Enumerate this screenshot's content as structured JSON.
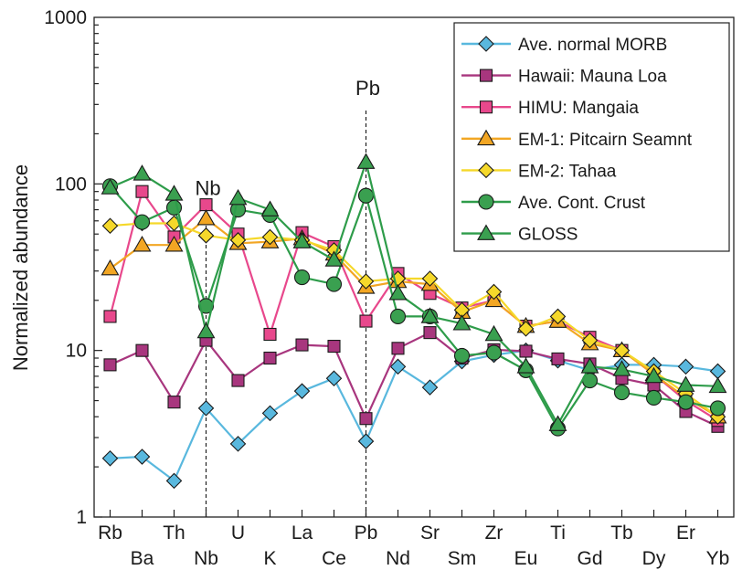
{
  "chart_data": {
    "type": "line",
    "title": "",
    "xlabel": "",
    "ylabel": "Normalized abundance",
    "yscale": "log",
    "ylim": [
      1,
      1000
    ],
    "yticks": [
      {
        "value": 1,
        "label": "1"
      },
      {
        "value": 10,
        "label": "10"
      },
      {
        "value": 100,
        "label": "100"
      },
      {
        "value": 1000,
        "label": "1000"
      }
    ],
    "categories": [
      "Rb",
      "Ba",
      "Th",
      "Nb",
      "U",
      "K",
      "La",
      "Ce",
      "Pb",
      "Nd",
      "Sr",
      "Sm",
      "Zr",
      "Eu",
      "Ti",
      "Gd",
      "Tb",
      "Dy",
      "Er",
      "Yb"
    ],
    "grid": false,
    "legend_position": "top-right",
    "annotations": [
      {
        "text": "Nb",
        "category": "Nb",
        "line_from": 1,
        "line_to": 70
      },
      {
        "text": "Pb",
        "category": "Pb",
        "line_from": 1,
        "line_to": 280
      }
    ],
    "series": [
      {
        "name": "Ave. normal MORB",
        "marker": "diamond",
        "color": "#59b8de",
        "marker_fill": "#59b8de",
        "values": [
          2.25,
          2.3,
          1.65,
          4.5,
          2.75,
          4.2,
          5.7,
          6.8,
          2.85,
          8,
          6,
          8.6,
          9.4,
          10,
          8.7,
          7.6,
          8.2,
          8.2,
          8,
          7.5
        ]
      },
      {
        "name": "Hawaii: Mauna Loa",
        "marker": "square",
        "color": "#a8367e",
        "marker_fill": "#a8367e",
        "values": [
          8.2,
          10,
          4.9,
          11.5,
          6.6,
          9,
          10.8,
          10.6,
          3.9,
          10.3,
          12.8,
          9,
          10.1,
          9.9,
          8.9,
          8.3,
          6.8,
          6.2,
          4.3,
          3.5
        ]
      },
      {
        "name": "HIMU: Mangaia",
        "marker": "square",
        "color": "#e8488c",
        "marker_fill": "#e8488c",
        "values": [
          16,
          90,
          48,
          75,
          50,
          12.5,
          51,
          42,
          15,
          29,
          22,
          18,
          20,
          14,
          15,
          12,
          10,
          7.2,
          5,
          3.8
        ]
      },
      {
        "name": "EM-1: Pitcairn Seamnt",
        "marker": "triangle",
        "color": "#f2a623",
        "marker_fill": "#f2a623",
        "values": [
          31,
          43,
          43,
          62,
          44,
          45,
          47,
          38,
          24,
          26,
          25,
          17,
          20,
          14,
          15,
          11,
          10,
          7.2,
          5.2,
          4
        ]
      },
      {
        "name": "EM-2: Tahaa",
        "marker": "diamond",
        "color": "#f5d82a",
        "marker_fill": "#f5d82a",
        "values": [
          56,
          58,
          58,
          49,
          46,
          48,
          46,
          40,
          26,
          27,
          27,
          17.5,
          22.5,
          13.5,
          16,
          11.5,
          10,
          7.5,
          5.5,
          4
        ]
      },
      {
        "name": "Ave. Cont. Crust",
        "marker": "circle",
        "color": "#2e9c4a",
        "marker_fill": "#3aa050",
        "values": [
          97,
          59,
          72,
          18.5,
          70,
          65,
          27.5,
          25,
          85,
          16,
          16,
          9.3,
          9.7,
          7.6,
          3.4,
          6.6,
          5.6,
          5.2,
          4.9,
          4.5
        ]
      },
      {
        "name": "GLOSS",
        "marker": "triangle",
        "color": "#2e9c4a",
        "marker_fill": "#3aa050",
        "values": [
          95,
          115,
          87,
          13,
          82,
          70,
          45,
          35,
          135,
          22,
          16,
          14.5,
          12.5,
          8,
          3.6,
          8,
          7.7,
          7,
          6.2,
          6.1
        ]
      }
    ]
  }
}
